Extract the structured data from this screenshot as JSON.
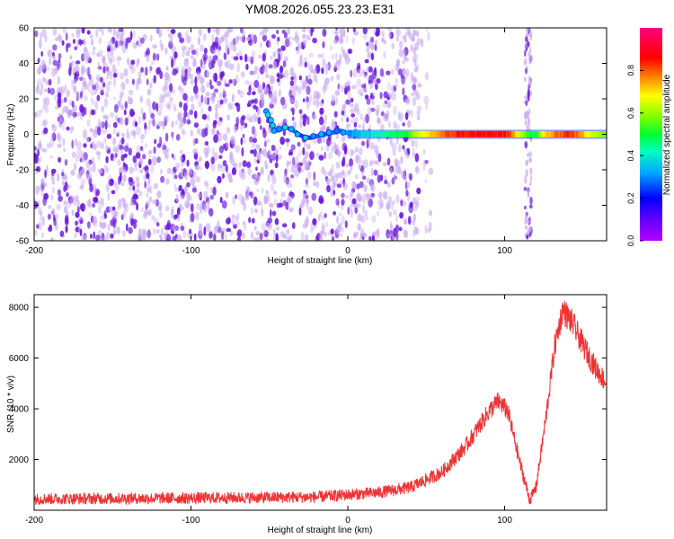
{
  "title": "YM08.2026.055.23.23.E31",
  "colors": {
    "frame": "#000000",
    "snr_line": "#ee3333",
    "speckle_dark": "#6a18e0",
    "speckle_light": "#c8aaf2"
  },
  "chart_data": [
    {
      "type": "heatmap",
      "xlabel": "Height of straight line (km)",
      "ylabel": "Frequency (Hz)",
      "xlim": [
        -200,
        165
      ],
      "ylim": [
        -60,
        60
      ],
      "x_ticks": [
        -200,
        -100,
        0,
        100
      ],
      "x_tick_labels": [
        "-200",
        "-100",
        "0",
        "100"
      ],
      "y_ticks": [
        -60,
        -40,
        -20,
        0,
        20,
        40,
        60
      ],
      "y_tick_labels": [
        "-60",
        "-40",
        "-20",
        "0",
        "20",
        "40",
        "60"
      ],
      "colorbar": {
        "label": "Normalized spectral amplitude",
        "range": [
          0,
          1
        ],
        "ticks": [
          0,
          0.2,
          0.4,
          0.6,
          0.8
        ],
        "tick_labels": [
          "0.0",
          "0.2",
          "0.4",
          "0.6",
          "0.8"
        ],
        "colormap": "rainbow (magenta-blue-cyan-green-yellow-red-pink)"
      },
      "noise_region": {
        "x": [
          -200,
          45
        ],
        "y": [
          -60,
          60
        ]
      },
      "vertical_noise_band": {
        "x": 115
      },
      "ridge": [
        {
          "x": -52,
          "y": 13
        },
        {
          "x": -50,
          "y": 10
        },
        {
          "x": -48,
          "y": 4
        },
        {
          "x": -45,
          "y": 2
        },
        {
          "x": -40,
          "y": 4
        },
        {
          "x": -35,
          "y": 2
        },
        {
          "x": -30,
          "y": -1
        },
        {
          "x": -25,
          "y": -2
        },
        {
          "x": -20,
          "y": -1
        },
        {
          "x": -15,
          "y": 0
        },
        {
          "x": -10,
          "y": 1
        },
        {
          "x": -5,
          "y": 2
        },
        {
          "x": 0,
          "y": 0.5
        },
        {
          "x": 10,
          "y": 0.2
        },
        {
          "x": 165,
          "y": 0
        }
      ],
      "ridge_amplitude": [
        {
          "x": -52,
          "a": 0.4
        },
        {
          "x": -30,
          "a": 0.25
        },
        {
          "x": 0,
          "a": 0.3
        },
        {
          "x": 20,
          "a": 0.42
        },
        {
          "x": 35,
          "a": 0.5
        },
        {
          "x": 50,
          "a": 0.7
        },
        {
          "x": 70,
          "a": 0.85
        },
        {
          "x": 100,
          "a": 0.85
        },
        {
          "x": 112,
          "a": 0.6
        },
        {
          "x": 118,
          "a": 0.45
        },
        {
          "x": 125,
          "a": 0.7
        },
        {
          "x": 140,
          "a": 0.85
        },
        {
          "x": 150,
          "a": 0.72
        },
        {
          "x": 165,
          "a": 0.55
        }
      ]
    },
    {
      "type": "line",
      "xlabel": "Height of straight line (km)",
      "ylabel": "SNR (10 * v/v)",
      "xlim": [
        -200,
        165
      ],
      "ylim": [
        0,
        8500
      ],
      "x_ticks": [
        -200,
        -100,
        0,
        100
      ],
      "x_tick_labels": [
        "-200",
        "-100",
        "0",
        "100"
      ],
      "y_ticks": [
        2000,
        4000,
        6000,
        8000
      ],
      "y_tick_labels": [
        "2000",
        "4000",
        "6000",
        "8000"
      ],
      "series": [
        {
          "color": "#ee3333",
          "noise_amplitude": 350,
          "envelope": [
            {
              "x": -200,
              "y": 450
            },
            {
              "x": -100,
              "y": 480
            },
            {
              "x": -20,
              "y": 520
            },
            {
              "x": 20,
              "y": 700
            },
            {
              "x": 40,
              "y": 900
            },
            {
              "x": 60,
              "y": 1500
            },
            {
              "x": 75,
              "y": 2500
            },
            {
              "x": 90,
              "y": 3900
            },
            {
              "x": 96,
              "y": 4300
            },
            {
              "x": 102,
              "y": 3900
            },
            {
              "x": 110,
              "y": 1800
            },
            {
              "x": 116,
              "y": 400
            },
            {
              "x": 120,
              "y": 900
            },
            {
              "x": 126,
              "y": 3500
            },
            {
              "x": 132,
              "y": 6500
            },
            {
              "x": 137,
              "y": 7900
            },
            {
              "x": 143,
              "y": 7400
            },
            {
              "x": 150,
              "y": 6500
            },
            {
              "x": 158,
              "y": 5600
            },
            {
              "x": 165,
              "y": 5000
            }
          ]
        }
      ]
    }
  ]
}
